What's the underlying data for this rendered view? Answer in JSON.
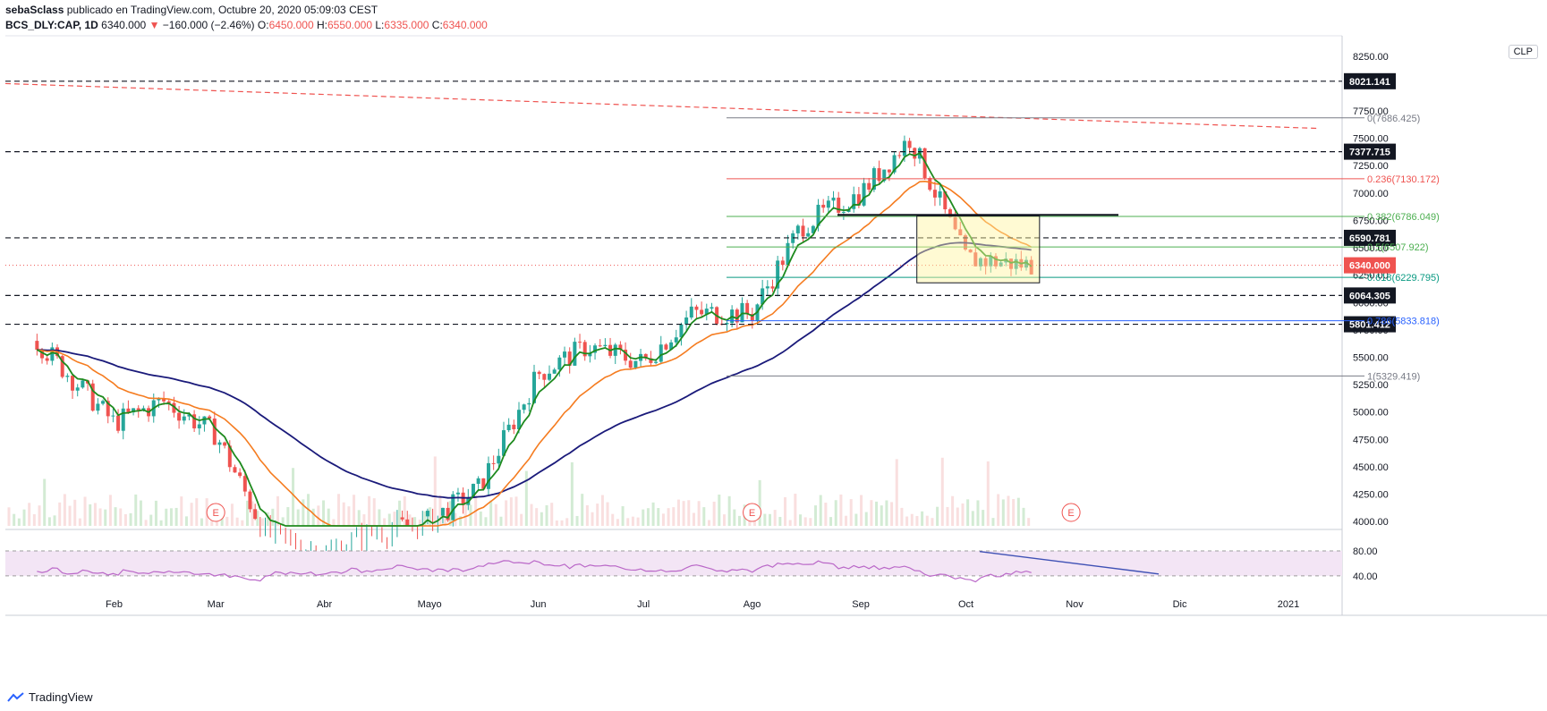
{
  "header": {
    "author": "sebaSclass",
    "published": "publicado en TradingView.com, Octubre 20, 2020 05:09:03 CEST",
    "symbol": "BCS_DLY:CAP, 1D",
    "last": "6340.000",
    "change": "−160.000 (−2.46%)",
    "o_label": "O:",
    "o": "6450.000",
    "h_label": "H:",
    "h": "6550.000",
    "l_label": "L:",
    "l": "6335.000",
    "c_label": "C:",
    "c": "6340.000",
    "down_arrow": "▼"
  },
  "currency": "CLP",
  "footer": {
    "brand": "TradingView"
  },
  "colors": {
    "up": "#26a69a",
    "down": "#ef5350",
    "ema_fast": "#1e8a1e",
    "ema_mid": "#f57c20",
    "ema_slow": "#1a1a7a",
    "rsi": "#ba68c8",
    "rsi_bg": "#f3e5f5",
    "trend": "#ef5350"
  },
  "chart_data": {
    "type": "candlestick",
    "price_axis": {
      "ticks": [
        8250,
        7750,
        7500,
        7250,
        7000,
        6750,
        6500,
        6250,
        6000,
        5750,
        5500,
        5250,
        5000,
        4750,
        4500,
        4250,
        4000
      ],
      "range": [
        3960,
        8420
      ]
    },
    "time_axis": [
      "Feb",
      "Mar",
      "Abr",
      "Mayo",
      "Jun",
      "Jul",
      "Ago",
      "Sep",
      "Oct",
      "Nov",
      "Dic",
      "2021"
    ],
    "key_levels": [
      8021.141,
      7377.715,
      6590.781,
      6064.305,
      5801.412
    ],
    "last_price": 6340.0,
    "fibonacci": [
      {
        "label": "0(7686.425)",
        "value": 7686.425
      },
      {
        "label": "0.236(7130.172)",
        "value": 7130.172
      },
      {
        "label": "0.382(6786.049)",
        "value": 6786.049
      },
      {
        "label": "0.5(6507.922)",
        "value": 6507.922
      },
      {
        "label": "0.618(6229.795)",
        "value": 6229.795
      },
      {
        "label": "0.786(5833.818)",
        "value": 5833.818
      },
      {
        "label": "1(5329.419)",
        "value": 5329.419
      }
    ],
    "resistance_line": 6800,
    "consolidation_box": {
      "start": "2020-09-17",
      "end": "2020-10-22",
      "top": 6790,
      "bottom": 6180
    },
    "earnings_markers": [
      "2020-03-01",
      "2020-08-01",
      "2020-10-31"
    ],
    "earnings_label": "E",
    "closes_monthly": [
      {
        "date": "2020-01-10",
        "close": 5650
      },
      {
        "date": "2020-02-01",
        "close": 4900
      },
      {
        "date": "2020-02-15",
        "close": 5100
      },
      {
        "date": "2020-03-01",
        "close": 4800
      },
      {
        "date": "2020-03-15",
        "close": 3900
      },
      {
        "date": "2020-04-01",
        "close": 3700
      },
      {
        "date": "2020-04-15",
        "close": 3900
      },
      {
        "date": "2020-05-01",
        "close": 4000
      },
      {
        "date": "2020-05-15",
        "close": 4300
      },
      {
        "date": "2020-06-01",
        "close": 5350
      },
      {
        "date": "2020-06-15",
        "close": 5600
      },
      {
        "date": "2020-07-01",
        "close": 5450
      },
      {
        "date": "2020-07-15",
        "close": 5900
      },
      {
        "date": "2020-08-01",
        "close": 5900
      },
      {
        "date": "2020-08-15",
        "close": 6700
      },
      {
        "date": "2020-09-01",
        "close": 7000
      },
      {
        "date": "2020-09-15",
        "close": 7500
      },
      {
        "date": "2020-10-01",
        "close": 6400
      },
      {
        "date": "2020-10-20",
        "close": 6340
      }
    ],
    "rsi": {
      "levels": [
        80,
        40
      ],
      "labels": [
        "80.00",
        "40.00"
      ]
    }
  }
}
